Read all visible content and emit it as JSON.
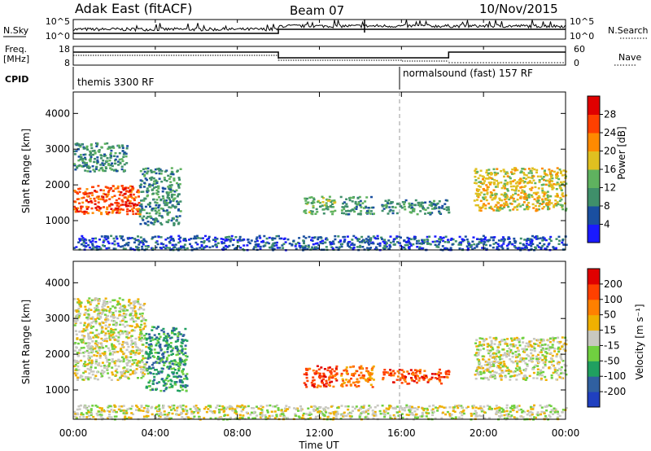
{
  "header": {
    "station": "Adak East (fitACF)",
    "beam": "Beam 07",
    "date": "10/Nov/2015"
  },
  "labels": {
    "nsky": "N.Sky",
    "nsearch": "N.Search",
    "freq_line1": "Freq.",
    "freq_line2": "[MHz]",
    "nave": "Nave",
    "cpid": "CPID"
  },
  "noise_panel": {
    "left_ticks": [
      "10^5",
      "10^0"
    ],
    "right_ticks": [
      "10^5",
      "10^0"
    ]
  },
  "freq_panel": {
    "left_ticks": [
      "18",
      "8"
    ],
    "right_ticks": [
      "60",
      "0"
    ]
  },
  "cpid_panel": {
    "segments": [
      {
        "label": "themis 3300 RF",
        "start_hour": 0
      },
      {
        "label": "normalsound (fast) 157 RF",
        "start_hour": 16
      }
    ]
  },
  "x_axis": {
    "label": "Time UT",
    "ticks": [
      "00:00",
      "04:00",
      "08:00",
      "12:00",
      "16:00",
      "20:00",
      "00:00"
    ]
  },
  "chart_data": [
    {
      "type": "heatmap",
      "name": "power",
      "ylabel": "Slant Range [km]",
      "yticks": [
        "1000",
        "2000",
        "3000",
        "4000"
      ],
      "xlim_hours": [
        0,
        24
      ],
      "ylim_km": [
        180,
        4600
      ],
      "colorbar_label": "Power [dB]",
      "colorbar_ticks": [
        "4",
        "8",
        "12",
        "16",
        "20",
        "24",
        "28"
      ],
      "colors": [
        "#1a1aff",
        "#1a4fa0",
        "#3f8f6a",
        "#5fb25f",
        "#e0c020",
        "#ff8a00",
        "#ff4000",
        "#e00000"
      ],
      "regions": [
        {
          "t": [
            0,
            3.2
          ],
          "r": [
            1200,
            2000
          ],
          "level": 6
        },
        {
          "t": [
            0,
            2.6
          ],
          "r": [
            2400,
            3200
          ],
          "level": 2
        },
        {
          "t": [
            3.2,
            5.2
          ],
          "r": [
            900,
            2500
          ],
          "level": 2
        },
        {
          "t": [
            11.2,
            12.8
          ],
          "r": [
            1200,
            1700
          ],
          "level": 3
        },
        {
          "t": [
            13.0,
            14.6
          ],
          "r": [
            1200,
            1700
          ],
          "level": 2
        },
        {
          "t": [
            15.0,
            18.3
          ],
          "r": [
            1200,
            1600
          ],
          "level": 2
        },
        {
          "t": [
            19.5,
            24.0
          ],
          "r": [
            1300,
            2500
          ],
          "level": 4
        },
        {
          "t": [
            0,
            24
          ],
          "r": [
            200,
            600
          ],
          "level": 1
        }
      ]
    },
    {
      "type": "heatmap",
      "name": "velocity",
      "ylabel": "Slant Range [km]",
      "yticks": [
        "1000",
        "2000",
        "3000",
        "4000"
      ],
      "xlim_hours": [
        0,
        24
      ],
      "ylim_km": [
        180,
        4600
      ],
      "colorbar_label": "Velocity [m s⁻¹]",
      "colorbar_ticks": [
        "200",
        "100",
        "50",
        "15",
        "-15",
        "-50",
        "-100",
        "-200"
      ],
      "colors": [
        "#2040c0",
        "#3060a0",
        "#20a060",
        "#70d040",
        "#c8c8c0",
        "#f0b000",
        "#ff8000",
        "#ff4000",
        "#e00000"
      ],
      "regions": [
        {
          "t": [
            0,
            3.5
          ],
          "r": [
            1300,
            2300
          ],
          "level": 4
        },
        {
          "t": [
            0,
            3.5
          ],
          "r": [
            2300,
            3600
          ],
          "level": 4
        },
        {
          "t": [
            3.5,
            5.5
          ],
          "r": [
            1000,
            2800
          ],
          "level": 2
        },
        {
          "t": [
            11.2,
            12.8
          ],
          "r": [
            1100,
            1700
          ],
          "level": 7
        },
        {
          "t": [
            13.0,
            14.6
          ],
          "r": [
            1100,
            1700
          ],
          "level": 6
        },
        {
          "t": [
            15.0,
            18.3
          ],
          "r": [
            1200,
            1600
          ],
          "level": 7
        },
        {
          "t": [
            19.5,
            24.0
          ],
          "r": [
            1300,
            2500
          ],
          "level": 4
        },
        {
          "t": [
            0,
            24
          ],
          "r": [
            200,
            600
          ],
          "level": 4
        }
      ]
    }
  ]
}
